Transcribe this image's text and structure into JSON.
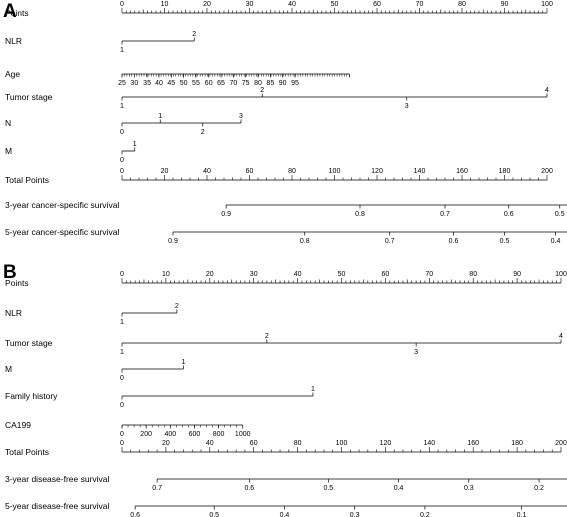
{
  "chart_data": [
    {
      "type": "nomogram",
      "panel_label": "A",
      "rows": [
        {
          "label": "Points",
          "kind": "points",
          "min": 0,
          "max": 100,
          "major_step": 10,
          "minor_step": 1,
          "ticks": [
            {
              "t": "0",
              "v": 0
            },
            {
              "t": "10",
              "v": 10
            },
            {
              "t": "20",
              "v": 20
            },
            {
              "t": "30",
              "v": 30
            },
            {
              "t": "40",
              "v": 40
            },
            {
              "t": "50",
              "v": 50
            },
            {
              "t": "60",
              "v": 60
            },
            {
              "t": "70",
              "v": 70
            },
            {
              "t": "80",
              "v": 80
            },
            {
              "t": "90",
              "v": 90
            },
            {
              "t": "100",
              "v": 100
            }
          ]
        },
        {
          "label": "NLR",
          "kind": "var",
          "range": [
            0,
            17
          ],
          "ticks": [
            {
              "t": "1",
              "v": 0,
              "pos": "below"
            },
            {
              "t": "2",
              "v": 17,
              "pos": "above"
            }
          ]
        },
        {
          "label": "Age",
          "kind": "var",
          "range": [
            0,
            53.5
          ],
          "minor_step": 0.575,
          "ticks": [
            {
              "t": "25",
              "v": 0
            },
            {
              "t": "30",
              "v": 2.9
            },
            {
              "t": "35",
              "v": 5.9
            },
            {
              "t": "40",
              "v": 8.7
            },
            {
              "t": "45",
              "v": 11.6
            },
            {
              "t": "50",
              "v": 14.5
            },
            {
              "t": "55",
              "v": 17.4
            },
            {
              "t": "60",
              "v": 20.4
            },
            {
              "t": "65",
              "v": 23.3
            },
            {
              "t": "70",
              "v": 26.2
            },
            {
              "t": "75",
              "v": 29.1
            },
            {
              "t": "80",
              "v": 32.0
            },
            {
              "t": "85",
              "v": 34.9
            },
            {
              "t": "90",
              "v": 37.8
            },
            {
              "t": "95",
              "v": 40.7
            },
            {
              "t": "",
              "v": 53.5
            }
          ]
        },
        {
          "label": "Tumor stage",
          "kind": "var",
          "range": [
            0,
            100
          ],
          "ticks": [
            {
              "t": "1",
              "v": 0,
              "pos": "below"
            },
            {
              "t": "2",
              "v": 33,
              "pos": "above"
            },
            {
              "t": "3",
              "v": 67,
              "pos": "below"
            },
            {
              "t": "4",
              "v": 100,
              "pos": "above"
            }
          ]
        },
        {
          "label": "N",
          "kind": "var",
          "range": [
            0,
            28
          ],
          "ticks": [
            {
              "t": "0",
              "v": 0,
              "pos": "below"
            },
            {
              "t": "1",
              "v": 9,
              "pos": "above"
            },
            {
              "t": "2",
              "v": 19,
              "pos": "below"
            },
            {
              "t": "3",
              "v": 28,
              "pos": "above"
            }
          ]
        },
        {
          "label": "M",
          "kind": "var",
          "range": [
            0,
            3
          ],
          "ticks": [
            {
              "t": "0",
              "v": 0,
              "pos": "below"
            },
            {
              "t": "1",
              "v": 3,
              "pos": "above"
            }
          ]
        },
        {
          "label": "Total Points",
          "kind": "points",
          "min": 0,
          "max": 200,
          "major_step": 20,
          "minor_step": 4,
          "ticks": [
            {
              "t": "0",
              "v": 0
            },
            {
              "t": "20",
              "v": 20
            },
            {
              "t": "40",
              "v": 40
            },
            {
              "t": "60",
              "v": 60
            },
            {
              "t": "80",
              "v": 80
            },
            {
              "t": "100",
              "v": 100
            },
            {
              "t": "120",
              "v": 120
            },
            {
              "t": "140",
              "v": 140
            },
            {
              "t": "160",
              "v": 160
            },
            {
              "t": "180",
              "v": 180
            },
            {
              "t": "200",
              "v": 200
            }
          ]
        },
        {
          "label": "3-year cancer-specific survival",
          "kind": "prob",
          "range": [
            24.5,
            182
          ],
          "ticks": [
            {
              "t": "0.9",
              "v": 24.5
            },
            {
              "t": "0.8",
              "v": 56
            },
            {
              "t": "0.7",
              "v": 76
            },
            {
              "t": "0.6",
              "v": 91
            },
            {
              "t": "0.5",
              "v": 103
            },
            {
              "t": "0.4",
              "v": 115
            },
            {
              "t": "0.3",
              "v": 126
            },
            {
              "t": "0.2",
              "v": 138
            },
            {
              "t": "0.1",
              "v": 154
            },
            {
              "t": "0.05",
              "v": 166
            },
            {
              "t": "0.01",
              "v": 182
            }
          ]
        },
        {
          "label": "5-year cancer-specific survival",
          "kind": "prob",
          "range": [
            12,
            186
          ],
          "ticks": [
            {
              "t": "0.9",
              "v": 12
            },
            {
              "t": "0.8",
              "v": 43
            },
            {
              "t": "0.7",
              "v": 63
            },
            {
              "t": "0.6",
              "v": 78
            },
            {
              "t": "0.5",
              "v": 90
            },
            {
              "t": "0.4",
              "v": 102
            },
            {
              "t": "0.3",
              "v": 113
            },
            {
              "t": "0.2",
              "v": 125
            },
            {
              "t": "0.1",
              "v": 141
            },
            {
              "t": "0.05",
              "v": 153
            },
            {
              "t": "0.01",
              "v": 169
            },
            {
              "t": "0.001",
              "v": 186
            }
          ]
        }
      ]
    },
    {
      "type": "nomogram",
      "panel_label": "B",
      "rows": [
        {
          "label": "Points",
          "kind": "points",
          "min": 0,
          "max": 100,
          "major_step": 10,
          "minor_step": 1,
          "ticks": [
            {
              "t": "0",
              "v": 0
            },
            {
              "t": "10",
              "v": 10
            },
            {
              "t": "20",
              "v": 20
            },
            {
              "t": "30",
              "v": 30
            },
            {
              "t": "40",
              "v": 40
            },
            {
              "t": "50",
              "v": 50
            },
            {
              "t": "60",
              "v": 60
            },
            {
              "t": "70",
              "v": 70
            },
            {
              "t": "80",
              "v": 80
            },
            {
              "t": "90",
              "v": 90
            },
            {
              "t": "100",
              "v": 100
            }
          ]
        },
        {
          "label": "NLR",
          "kind": "var",
          "range": [
            0,
            12.5
          ],
          "ticks": [
            {
              "t": "1",
              "v": 0,
              "pos": "below"
            },
            {
              "t": "2",
              "v": 12.5,
              "pos": "above"
            }
          ]
        },
        {
          "label": "Tumor  stage",
          "kind": "var",
          "range": [
            0,
            100
          ],
          "ticks": [
            {
              "t": "1",
              "v": 0,
              "pos": "below"
            },
            {
              "t": "2",
              "v": 33,
              "pos": "above"
            },
            {
              "t": "3",
              "v": 67,
              "pos": "below"
            },
            {
              "t": "4",
              "v": 100,
              "pos": "above"
            }
          ]
        },
        {
          "label": "M",
          "kind": "var",
          "range": [
            0,
            14
          ],
          "ticks": [
            {
              "t": "0",
              "v": 0,
              "pos": "below"
            },
            {
              "t": "1",
              "v": 14,
              "pos": "above"
            }
          ]
        },
        {
          "label": "Family  history",
          "kind": "var",
          "range": [
            0,
            43.5
          ],
          "ticks": [
            {
              "t": "0",
              "v": 0,
              "pos": "below"
            },
            {
              "t": "1",
              "v": 43.5,
              "pos": "above"
            }
          ]
        },
        {
          "label": "CA199",
          "kind": "var",
          "range": [
            0,
            27.5
          ],
          "minor_step": 1.375,
          "ticks": [
            {
              "t": "0",
              "v": 0
            },
            {
              "t": "200",
              "v": 5.5
            },
            {
              "t": "400",
              "v": 11
            },
            {
              "t": "600",
              "v": 16.5
            },
            {
              "t": "800",
              "v": 22
            },
            {
              "t": "1000",
              "v": 27.5
            }
          ]
        },
        {
          "label": "Total Points",
          "kind": "points",
          "min": 0,
          "max": 200,
          "major_step": 20,
          "minor_step": 4,
          "ticks": [
            {
              "t": "0",
              "v": 0
            },
            {
              "t": "20",
              "v": 20
            },
            {
              "t": "40",
              "v": 40
            },
            {
              "t": "60",
              "v": 60
            },
            {
              "t": "80",
              "v": 80
            },
            {
              "t": "100",
              "v": 100
            },
            {
              "t": "120",
              "v": 120
            },
            {
              "t": "140",
              "v": 140
            },
            {
              "t": "160",
              "v": 160
            },
            {
              "t": "180",
              "v": 180
            },
            {
              "t": "200",
              "v": 200
            }
          ]
        },
        {
          "label": "3-year disease-free survival",
          "kind": "prob",
          "range": [
            8,
            179
          ],
          "ticks": [
            {
              "t": "0.7",
              "v": 8
            },
            {
              "t": "0.6",
              "v": 29
            },
            {
              "t": "0.5",
              "v": 47
            },
            {
              "t": "0.4",
              "v": 63
            },
            {
              "t": "0.3",
              "v": 79
            },
            {
              "t": "0.2",
              "v": 95
            },
            {
              "t": "0.1",
              "v": 117
            },
            {
              "t": "0.05",
              "v": 131
            },
            {
              "t": "0.01",
              "v": 157
            },
            {
              "t": "0.001",
              "v": 179
            }
          ]
        },
        {
          "label": "5-year disease-free survival",
          "kind": "prob",
          "range": [
            3,
            154
          ],
          "ticks": [
            {
              "t": "0.6",
              "v": 3
            },
            {
              "t": "0.5",
              "v": 21
            },
            {
              "t": "0.4",
              "v": 37
            },
            {
              "t": "0.3",
              "v": 53
            },
            {
              "t": "0.2",
              "v": 69
            },
            {
              "t": "0.1",
              "v": 91
            },
            {
              "t": "0.05",
              "v": 105
            },
            {
              "t": "0.01",
              "v": 131
            },
            {
              "t": "0.001",
              "v": 154
            }
          ]
        }
      ]
    }
  ]
}
